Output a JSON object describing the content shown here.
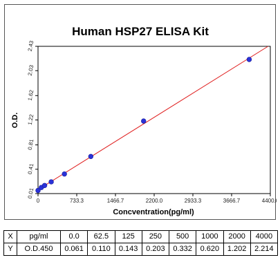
{
  "chart_data": {
    "type": "scatter",
    "title": "Human HSP27 ELISA Kit",
    "xlabel": "Concventration(pg/ml)",
    "ylabel": "O.D.",
    "xlim": [
      0,
      4400
    ],
    "ylim": [
      0.01,
      2.43
    ],
    "x_ticks": [
      "0",
      "733.3",
      "1466.7",
      "2200.0",
      "2933.3",
      "3666.7",
      "4400.0"
    ],
    "y_ticks": [
      "0.01",
      "0.41",
      "0.81",
      "1.22",
      "1.62",
      "2.03",
      "2.43"
    ],
    "grid": false,
    "legend": "none",
    "points": {
      "x": [
        0,
        62.5,
        125,
        250,
        500,
        1000,
        2000,
        4000
      ],
      "y": [
        0.061,
        0.11,
        0.143,
        0.203,
        0.332,
        0.62,
        1.202,
        2.214
      ]
    },
    "fit_line": {
      "type": "linear",
      "color": "#e02020"
    },
    "point_color": "#2a32d8"
  },
  "table": {
    "rows": [
      [
        "X",
        "pg/ml",
        "0.0",
        "62.5",
        "125",
        "250",
        "500",
        "1000",
        "2000",
        "4000"
      ],
      [
        "Y",
        "O.D.450",
        "0.061",
        "0.110",
        "0.143",
        "0.203",
        "0.332",
        "0.620",
        "1.202",
        "2.214"
      ]
    ]
  }
}
